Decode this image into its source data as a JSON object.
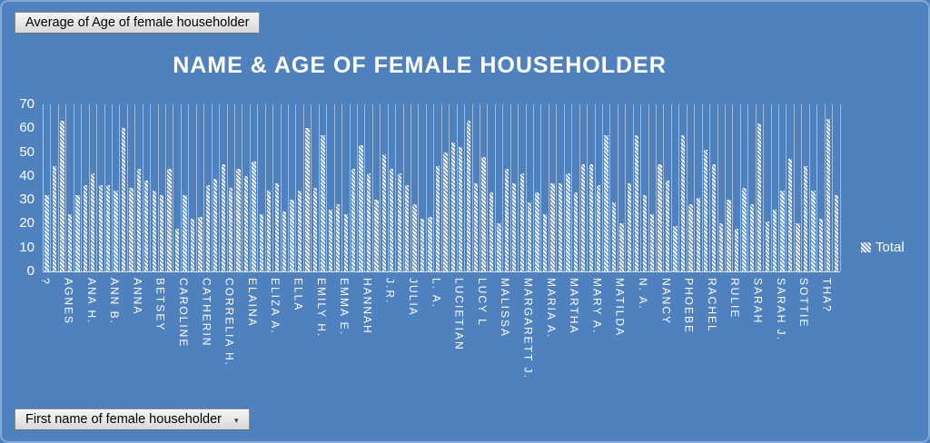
{
  "filter_buttons": {
    "value_field": "Average of Age of female householder",
    "category_field": "First name of female householder",
    "dropdown_arrow": "▾"
  },
  "legend": {
    "label": "Total"
  },
  "colors": {
    "background": "#4e81bd",
    "border": "#84a7d3",
    "text": "#ffffff",
    "bar_fill": "#ffffff",
    "gridline": "rgba(255,255,255,0.45)",
    "button_bg": "#e4e4e4",
    "button_text": "#000000"
  },
  "chart_data": {
    "type": "bar",
    "title": "NAME & AGE OF FEMALE HOUSEHOLDER",
    "series": [
      {
        "name": "Total",
        "values": [
          32,
          44,
          63,
          24,
          32,
          36,
          41,
          36,
          36,
          34,
          60,
          35,
          43,
          38,
          34,
          32,
          43,
          18,
          32,
          22,
          23,
          36,
          39,
          45,
          35,
          43,
          40,
          46,
          24,
          34,
          37,
          25,
          30,
          34,
          60,
          35,
          57,
          26,
          28,
          24,
          43,
          53,
          41,
          30,
          49,
          43,
          41,
          36,
          28,
          22,
          23,
          44,
          50,
          54,
          52,
          63,
          37,
          48,
          33,
          20,
          43,
          37,
          41,
          29,
          33,
          24,
          37,
          37,
          41,
          33,
          45,
          45,
          36,
          57,
          29,
          20,
          37,
          57,
          32,
          24,
          45,
          38,
          19,
          57,
          28,
          31,
          51,
          45,
          20,
          30,
          18,
          35,
          28,
          62,
          21,
          26,
          34,
          47,
          20,
          44,
          34,
          22,
          64,
          32
        ]
      }
    ],
    "tick_labels": [
      "?",
      "AGNES",
      "ANA H.",
      "ANN B.",
      "ANNA",
      "BETSEY",
      "CAROLINE",
      "CATHERIN",
      "CORRELIA H.",
      "ELAINA",
      "ELIZA A.",
      "ELLA",
      "EMILY H.",
      "EMMA E.",
      "HANNAH",
      "J.R.",
      "JULIA",
      "L. A.",
      "LUCIETIAN",
      "LUCY L",
      "MALISSA",
      "MARGARETT J.",
      "MARIA A.",
      "MARTHA",
      "MARY A.",
      "MATILDA",
      "N. A.",
      "NANCY",
      "PHOEBE",
      "RACHEL",
      "RULIE",
      "SARAH",
      "SARAH J.",
      "SOTTIE",
      "THA?"
    ],
    "label_interval": 3,
    "xlabel": "",
    "ylabel": "",
    "ylim": [
      0,
      70
    ],
    "yticks": [
      70,
      60,
      50,
      40,
      30,
      20,
      10,
      0
    ],
    "gridlines": "vertical-per-category",
    "legend_position": "right",
    "bar_pattern": "diagonal-hatch"
  }
}
